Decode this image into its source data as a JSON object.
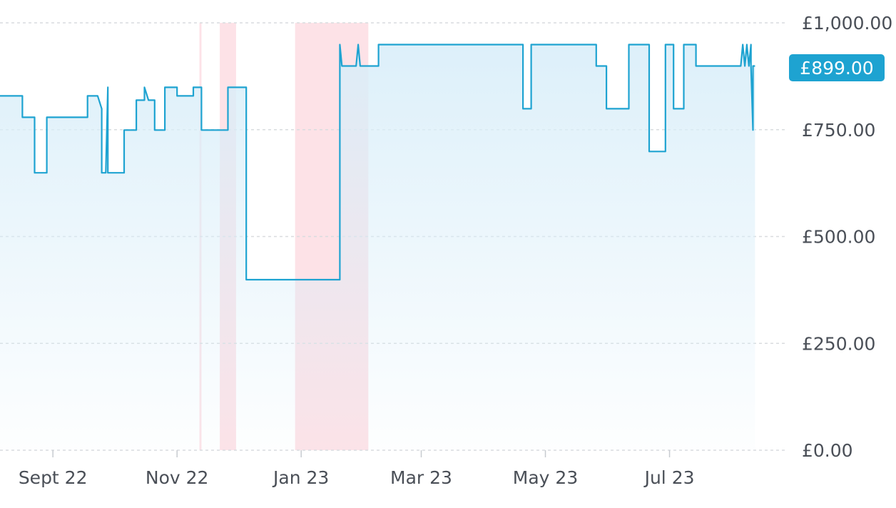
{
  "chart_data": {
    "type": "line",
    "title": "",
    "xlabel": "",
    "ylabel": "",
    "ylim": [
      0,
      1000
    ],
    "y_ticks": [
      "£0.00",
      "£250.00",
      "£500.00",
      "£750.00",
      "£1,000.00"
    ],
    "y_tick_values": [
      0,
      250,
      500,
      750,
      1000
    ],
    "x_ticks": [
      {
        "label": "Sept 22",
        "date": "2022-09-01"
      },
      {
        "label": "Nov 22",
        "date": "2022-11-01"
      },
      {
        "label": "Jan 23",
        "date": "2023-01-01"
      },
      {
        "label": "Mar 23",
        "date": "2023-03-01"
      },
      {
        "label": "May 23",
        "date": "2023-05-01"
      },
      {
        "label": "Jul 23",
        "date": "2023-07-01"
      }
    ],
    "xlim": [
      "2022-08-06",
      "2023-08-28"
    ],
    "grid": true,
    "current_price": "£899.00",
    "line_color": "#1ea3d1",
    "fill_color": "#d9eef9",
    "highlight_color": "#fde2e7",
    "highlighted_ranges": [
      {
        "start": "2022-11-12",
        "end": "2022-11-13"
      },
      {
        "start": "2022-11-22",
        "end": "2022-11-30"
      },
      {
        "start": "2022-12-29",
        "end": "2023-02-03"
      }
    ],
    "series": [
      {
        "points": [
          [
            "2022-08-06",
            829
          ],
          [
            "2022-08-17",
            829
          ],
          [
            "2022-08-17",
            779
          ],
          [
            "2022-08-23",
            779
          ],
          [
            "2022-08-23",
            649
          ],
          [
            "2022-08-29",
            649
          ],
          [
            "2022-08-29",
            779
          ],
          [
            "2022-09-18",
            779
          ],
          [
            "2022-09-18",
            829
          ],
          [
            "2022-09-23",
            829
          ],
          [
            "2022-09-25",
            799
          ],
          [
            "2022-09-25",
            649
          ],
          [
            "2022-09-27",
            649
          ],
          [
            "2022-09-28",
            849
          ],
          [
            "2022-09-28",
            649
          ],
          [
            "2022-10-06",
            649
          ],
          [
            "2022-10-06",
            749
          ],
          [
            "2022-10-12",
            749
          ],
          [
            "2022-10-12",
            819
          ],
          [
            "2022-10-16",
            819
          ],
          [
            "2022-10-16",
            849
          ],
          [
            "2022-10-18",
            819
          ],
          [
            "2022-10-21",
            819
          ],
          [
            "2022-10-21",
            749
          ],
          [
            "2022-10-26",
            749
          ],
          [
            "2022-10-26",
            849
          ],
          [
            "2022-11-01",
            849
          ],
          [
            "2022-11-01",
            829
          ],
          [
            "2022-11-09",
            829
          ],
          [
            "2022-11-09",
            849
          ],
          [
            "2022-11-13",
            849
          ],
          [
            "2022-11-13",
            749
          ],
          [
            "2022-11-26",
            749
          ],
          [
            "2022-11-26",
            849
          ],
          [
            "2022-12-05",
            849
          ],
          [
            "2022-12-05",
            399
          ],
          [
            "2023-01-20",
            399
          ],
          [
            "2023-01-20",
            949
          ],
          [
            "2023-01-21",
            899
          ],
          [
            "2023-01-28",
            899
          ],
          [
            "2023-01-29",
            949
          ],
          [
            "2023-01-30",
            899
          ],
          [
            "2023-02-08",
            899
          ],
          [
            "2023-02-08",
            949
          ],
          [
            "2023-04-20",
            949
          ],
          [
            "2023-04-20",
            799
          ],
          [
            "2023-04-24",
            799
          ],
          [
            "2023-04-24",
            949
          ],
          [
            "2023-05-26",
            949
          ],
          [
            "2023-05-26",
            899
          ],
          [
            "2023-05-31",
            899
          ],
          [
            "2023-05-31",
            799
          ],
          [
            "2023-06-11",
            799
          ],
          [
            "2023-06-11",
            949
          ],
          [
            "2023-06-21",
            949
          ],
          [
            "2023-06-21",
            699
          ],
          [
            "2023-06-29",
            699
          ],
          [
            "2023-06-29",
            949
          ],
          [
            "2023-07-03",
            949
          ],
          [
            "2023-07-03",
            799
          ],
          [
            "2023-07-08",
            799
          ],
          [
            "2023-07-08",
            949
          ],
          [
            "2023-07-14",
            949
          ],
          [
            "2023-07-14",
            899
          ],
          [
            "2023-08-05",
            899
          ],
          [
            "2023-08-06",
            949
          ],
          [
            "2023-08-07",
            899
          ],
          [
            "2023-08-08",
            949
          ],
          [
            "2023-08-09",
            899
          ],
          [
            "2023-08-10",
            949
          ],
          [
            "2023-08-10",
            899
          ],
          [
            "2023-08-11",
            749
          ],
          [
            "2023-08-11",
            899
          ],
          [
            "2023-08-12",
            899
          ]
        ]
      }
    ]
  }
}
